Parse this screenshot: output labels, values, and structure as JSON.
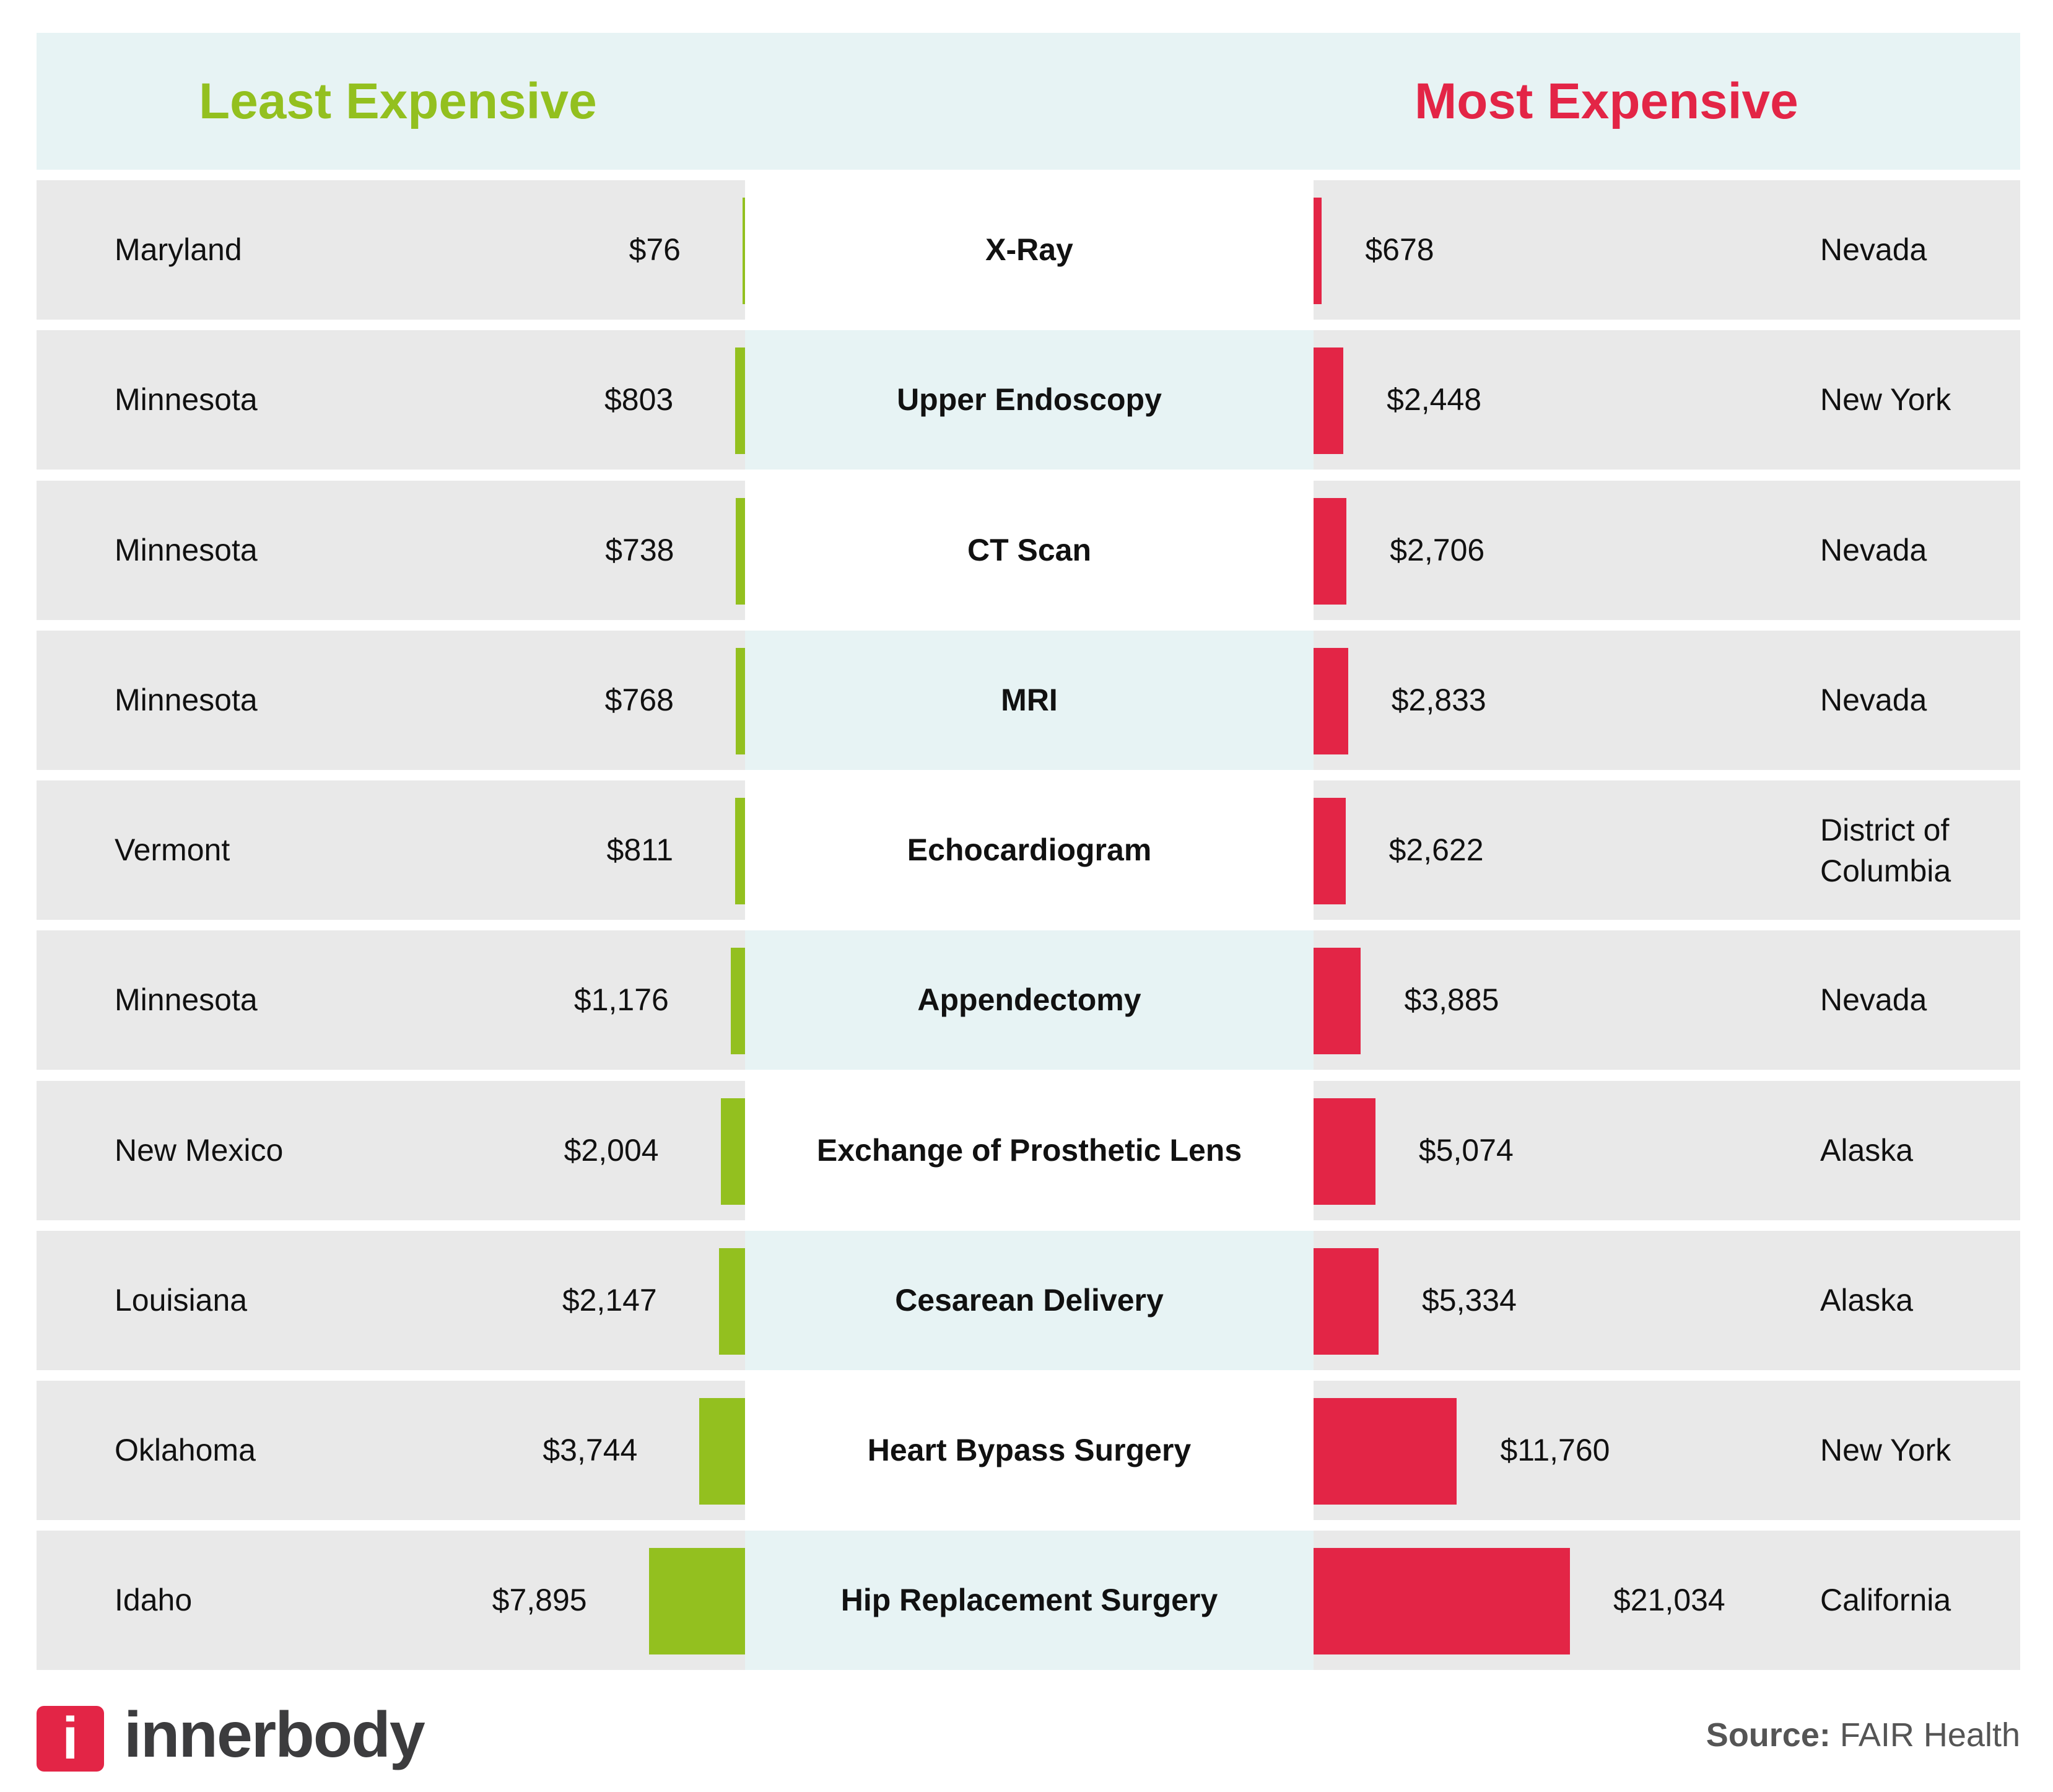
{
  "colors": {
    "least": "#93c01f",
    "most": "#e32546",
    "header_bg": "#e7f3f4",
    "row_bg": "#e9e9e9",
    "center_alt_bg": "#e7f3f4",
    "logo": "#e32546"
  },
  "header": {
    "least_title": "Least Expensive",
    "most_title": "Most Expensive"
  },
  "chart_data": {
    "type": "bar",
    "orientation": "diverging-horizontal",
    "categories": [
      "X-Ray",
      "Upper Endoscopy",
      "CT Scan",
      "MRI",
      "Echocardiogram",
      "Appendectomy",
      "Exchange of Prosthetic Lens",
      "Cesarean Delivery",
      "Heart Bypass Surgery",
      "Hip Replacement Surgery"
    ],
    "series": [
      {
        "name": "Least Expensive",
        "values": [
          76,
          803,
          738,
          768,
          811,
          1176,
          2004,
          2147,
          3744,
          7895
        ],
        "labels": [
          "$76",
          "$803",
          "$738",
          "$768",
          "$811",
          "$1,176",
          "$2,004",
          "$2,147",
          "$3,744",
          "$7,895"
        ],
        "states": [
          "Maryland",
          "Minnesota",
          "Minnesota",
          "Minnesota",
          "Vermont",
          "Minnesota",
          "New Mexico",
          "Louisiana",
          "Oklahoma",
          "Idaho"
        ]
      },
      {
        "name": "Most Expensive",
        "values": [
          678,
          2448,
          2706,
          2833,
          2622,
          3885,
          5074,
          5334,
          11760,
          21034
        ],
        "labels": [
          "$678",
          "$2,448",
          "$2,706",
          "$2,833",
          "$2,622",
          "$3,885",
          "$5,074",
          "$5,334",
          "$11,760",
          "$21,034"
        ],
        "states": [
          "Nevada",
          "New York",
          "Nevada",
          "Nevada",
          "District of Columbia",
          "Nevada",
          "Alaska",
          "Alaska",
          "New York",
          "California"
        ]
      }
    ]
  },
  "footer": {
    "brand": "innerbody",
    "logo_letter": "i",
    "source_label": "Source:",
    "source_value": "FAIR Health"
  }
}
